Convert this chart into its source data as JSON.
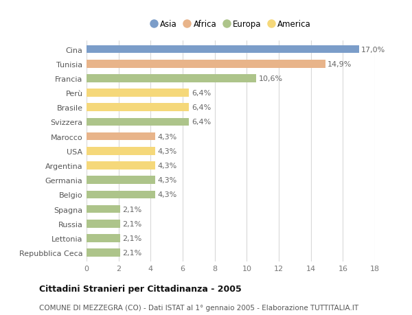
{
  "categories": [
    "Repubblica Ceca",
    "Lettonia",
    "Russia",
    "Spagna",
    "Belgio",
    "Germania",
    "Argentina",
    "USA",
    "Marocco",
    "Svizzera",
    "Brasile",
    "Perù",
    "Francia",
    "Tunisia",
    "Cina"
  ],
  "values": [
    2.1,
    2.1,
    2.1,
    2.1,
    4.3,
    4.3,
    4.3,
    4.3,
    4.3,
    6.4,
    6.4,
    6.4,
    10.6,
    14.9,
    17.0
  ],
  "continents": [
    "Europa",
    "Europa",
    "Europa",
    "Europa",
    "Europa",
    "Europa",
    "America",
    "America",
    "Africa",
    "Europa",
    "America",
    "America",
    "Europa",
    "Africa",
    "Asia"
  ],
  "colors": {
    "Asia": "#7b9dc9",
    "Africa": "#e8b48a",
    "Europa": "#adc48a",
    "America": "#f5d87a"
  },
  "legend_order": [
    "Asia",
    "Africa",
    "Europa",
    "America"
  ],
  "title": "Cittadini Stranieri per Cittadinanza - 2005",
  "subtitle": "COMUNE DI MEZZEGRA (CO) - Dati ISTAT al 1° gennaio 2005 - Elaborazione TUTTITALIA.IT",
  "xlim": [
    0,
    18
  ],
  "xticks": [
    0,
    2,
    4,
    6,
    8,
    10,
    12,
    14,
    16,
    18
  ],
  "bar_height": 0.55,
  "label_fontsize": 8,
  "tick_fontsize": 8,
  "title_fontsize": 9,
  "subtitle_fontsize": 7.5,
  "legend_fontsize": 8.5,
  "background_color": "#ffffff",
  "grid_color": "#d8d8d8"
}
